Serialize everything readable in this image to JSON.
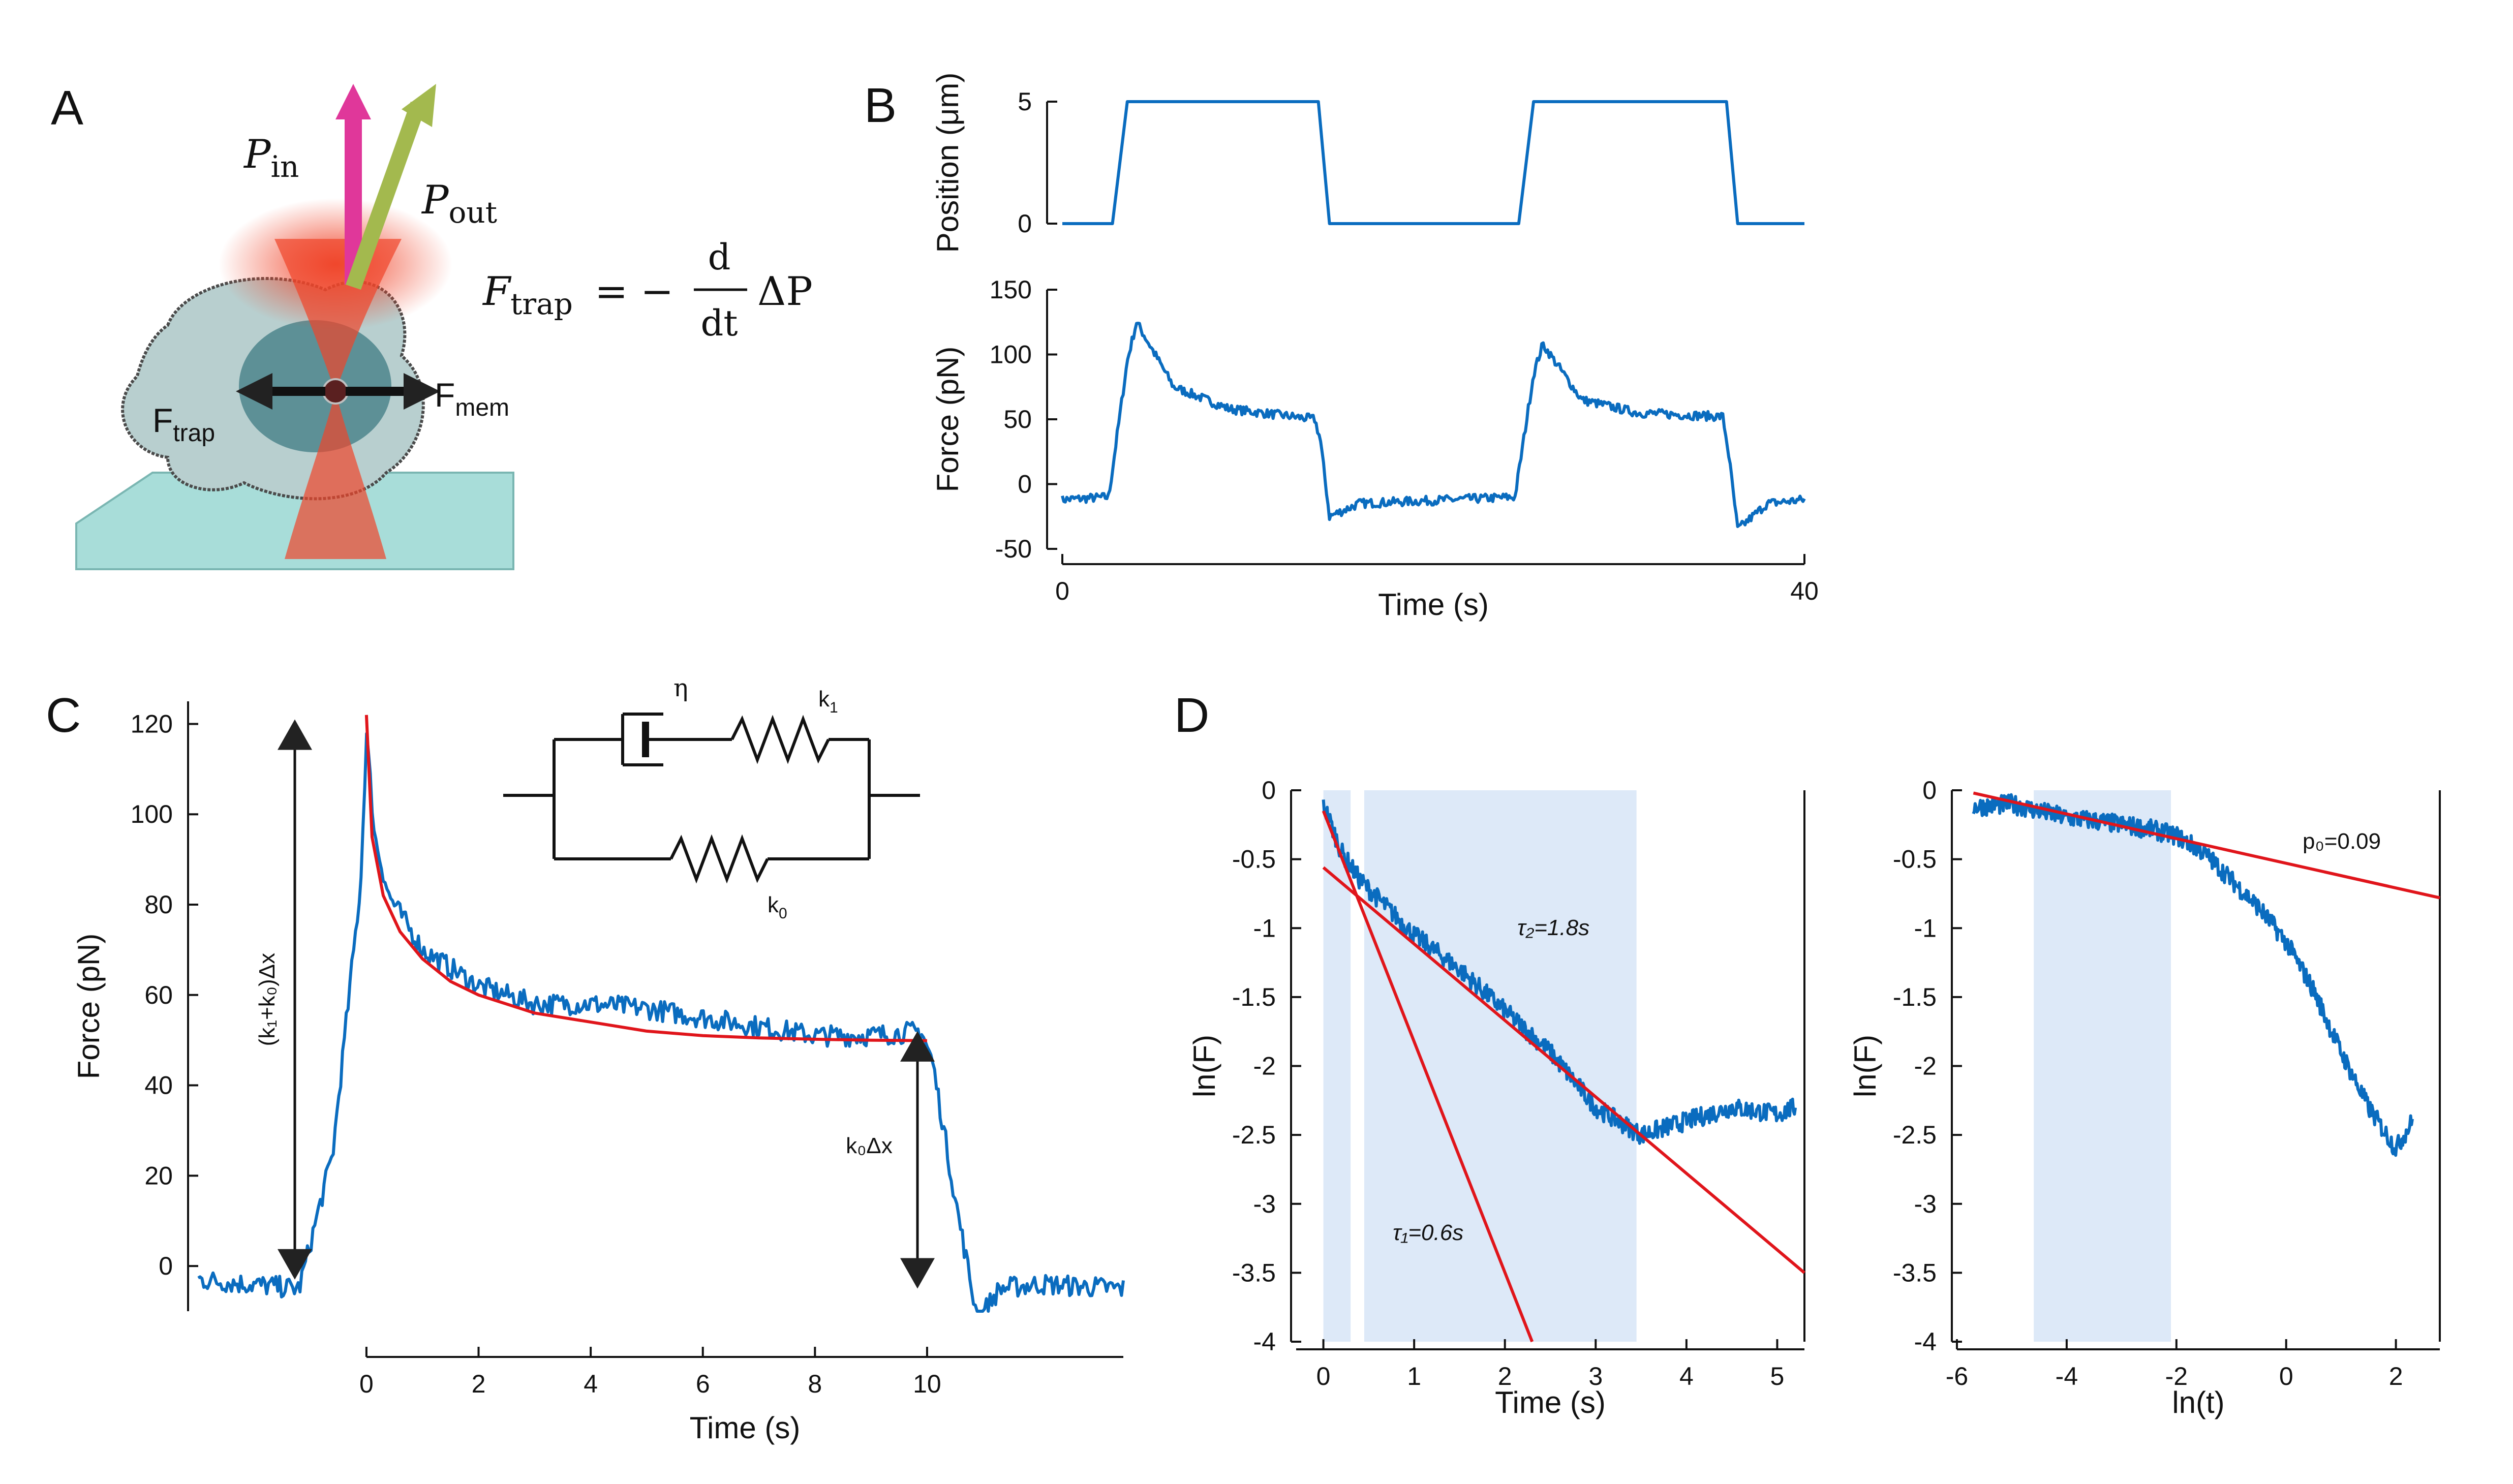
{
  "panels": {
    "A": {
      "letter": "A",
      "p_in_main": "P",
      "p_in_sub": "in",
      "p_out_main": "P",
      "p_out_sub": "out",
      "f_trap_main": "F",
      "f_trap_sub": "trap",
      "equation_rhs": "= −",
      "frac_num": "d",
      "frac_den": "dt",
      "delta_p": "ΔP",
      "label_ftrap_main": "F",
      "label_ftrap_sub": "trap",
      "label_fmem_main": "F",
      "label_fmem_sub": "mem"
    },
    "B": {
      "letter": "B"
    },
    "C": {
      "letter": "C",
      "eta": "η",
      "k1_main": "k",
      "k1_sub": "1",
      "k0_main": "k",
      "k0_sub": "0",
      "arrow_label_total": "(k₁+k₀)Δx",
      "arrow_label_k0": "k₀Δx"
    },
    "D": {
      "letter": "D",
      "tau2": "τ₂=1.8s",
      "tau1": "τ₁=0.6s",
      "p0": "p₀=0.09"
    }
  },
  "colors": {
    "trace": "#0a6cbf",
    "fit": "#e0151b",
    "shade": "#dde9f8",
    "pin_arrow": "#e0379a",
    "pout_arrow": "#a3b94e",
    "laser": "#f0452a"
  },
  "chart_data": [
    {
      "id": "B-position",
      "type": "line",
      "xlabel": "",
      "ylabel": "Position (μm)",
      "xlim": [
        0,
        40
      ],
      "ylim": [
        0,
        5
      ],
      "yticks": [
        0,
        5
      ],
      "series": [
        {
          "x": [
            0,
            2.7,
            3.5,
            13.8,
            14.4,
            24.6,
            25.4,
            35.8,
            36.4,
            40
          ],
          "y": [
            0,
            0,
            5,
            5,
            0,
            0,
            5,
            5,
            0,
            0
          ]
        }
      ]
    },
    {
      "id": "B-force",
      "type": "line",
      "xlabel": "Time (s)",
      "ylabel": "Force (pN)",
      "xlim": [
        0,
        40
      ],
      "ylim": [
        -50,
        150
      ],
      "yticks": [
        -50,
        0,
        50,
        100,
        150
      ],
      "xticks": [
        0,
        40
      ],
      "series": [
        {
          "x": [
            0,
            2.5,
            3.5,
            4,
            6,
            9,
            13.6,
            13.9,
            14.4,
            16,
            24.4,
            25.4,
            25.9,
            28,
            31,
            35.6,
            35.9,
            36.4,
            38,
            40
          ],
          "y": [
            -12,
            -10,
            95,
            125,
            75,
            58,
            50,
            35,
            -25,
            -15,
            -10,
            85,
            108,
            65,
            55,
            52,
            25,
            -35,
            -15,
            -12
          ]
        }
      ]
    },
    {
      "id": "C",
      "type": "line",
      "xlabel": "Time (s)",
      "ylabel": "Force (pN)",
      "xlim": [
        -3,
        13.5
      ],
      "ylim": [
        -10,
        125
      ],
      "yticks": [
        0,
        20,
        40,
        60,
        80,
        100,
        120
      ],
      "xticks": [
        0,
        2,
        4,
        6,
        8,
        10
      ],
      "series": [
        {
          "name": "data",
          "x": [
            -3,
            -1.2,
            -0.6,
            -0.1,
            0,
            0.15,
            0.4,
            1,
            2,
            3,
            4,
            5,
            6,
            7,
            8,
            9,
            9.9,
            10.1,
            10.5,
            10.9,
            11.3,
            12,
            13.5
          ],
          "y": [
            -3,
            -5,
            25,
            85,
            118,
            95,
            82,
            70,
            62,
            58,
            58,
            57,
            55,
            53,
            51,
            51,
            52,
            45,
            15,
            -12,
            -5,
            -4,
            -5
          ]
        },
        {
          "name": "fit",
          "x": [
            0,
            0.1,
            0.3,
            0.6,
            1,
            1.5,
            2,
            3,
            4,
            5,
            6,
            7,
            8,
            9,
            10
          ],
          "y": [
            122,
            95,
            82,
            74,
            68,
            63,
            60,
            56,
            54,
            52,
            51,
            50.5,
            50.2,
            50,
            49.9
          ]
        }
      ]
    },
    {
      "id": "D-left",
      "type": "line",
      "xlabel": "Time (s)",
      "ylabel": "ln(F)",
      "xlim": [
        -0.3,
        5.3
      ],
      "ylim": [
        -4,
        0
      ],
      "yticks": [
        0,
        -0.5,
        -1,
        -1.5,
        -2,
        -2.5,
        -3,
        -3.5,
        -4
      ],
      "xticks": [
        0,
        1,
        2,
        3,
        4,
        5
      ],
      "shaded_x": [
        [
          0,
          0.3
        ],
        [
          0.45,
          3.45
        ]
      ],
      "series": [
        {
          "name": "data",
          "x": [
            0,
            0.2,
            0.4,
            0.7,
            1,
            1.5,
            2,
            2.5,
            3,
            3.5,
            4,
            4.5,
            5,
            5.2
          ],
          "y": [
            -0.1,
            -0.45,
            -0.65,
            -0.85,
            -1.05,
            -1.3,
            -1.6,
            -1.9,
            -2.3,
            -2.5,
            -2.4,
            -2.3,
            -2.35,
            -2.3
          ]
        },
        {
          "name": "fit-tau2",
          "x": [
            0,
            5.3
          ],
          "y": [
            -0.56,
            -3.5
          ]
        },
        {
          "name": "fit-tau1",
          "x": [
            0,
            2.3
          ],
          "y": [
            -0.15,
            -4
          ]
        }
      ]
    },
    {
      "id": "D-right",
      "type": "line",
      "xlabel": "ln(t)",
      "ylabel": "ln(F)",
      "xlim": [
        -6,
        2.8
      ],
      "ylim": [
        -4,
        0
      ],
      "yticks": [
        0,
        -0.5,
        -1,
        -1.5,
        -2,
        -2.5,
        -3,
        -3.5,
        -4
      ],
      "xticks": [
        -6,
        -4,
        -2,
        0,
        2
      ],
      "shaded_x": [
        [
          -4.6,
          -2.1
        ]
      ],
      "series": [
        {
          "name": "data",
          "x": [
            -5.7,
            -5,
            -4.5,
            -4,
            -3.5,
            -3,
            -2.5,
            -2,
            -1.5,
            -1,
            -0.5,
            0,
            0.5,
            1,
            1.5,
            2,
            2.3
          ],
          "y": [
            -0.12,
            -0.1,
            -0.15,
            -0.2,
            -0.22,
            -0.25,
            -0.28,
            -0.33,
            -0.45,
            -0.65,
            -0.85,
            -1.1,
            -1.45,
            -1.9,
            -2.3,
            -2.6,
            -2.4
          ]
        },
        {
          "name": "fit-p0",
          "x": [
            -5.7,
            2.8
          ],
          "y": [
            -0.02,
            -0.78
          ]
        }
      ]
    }
  ]
}
